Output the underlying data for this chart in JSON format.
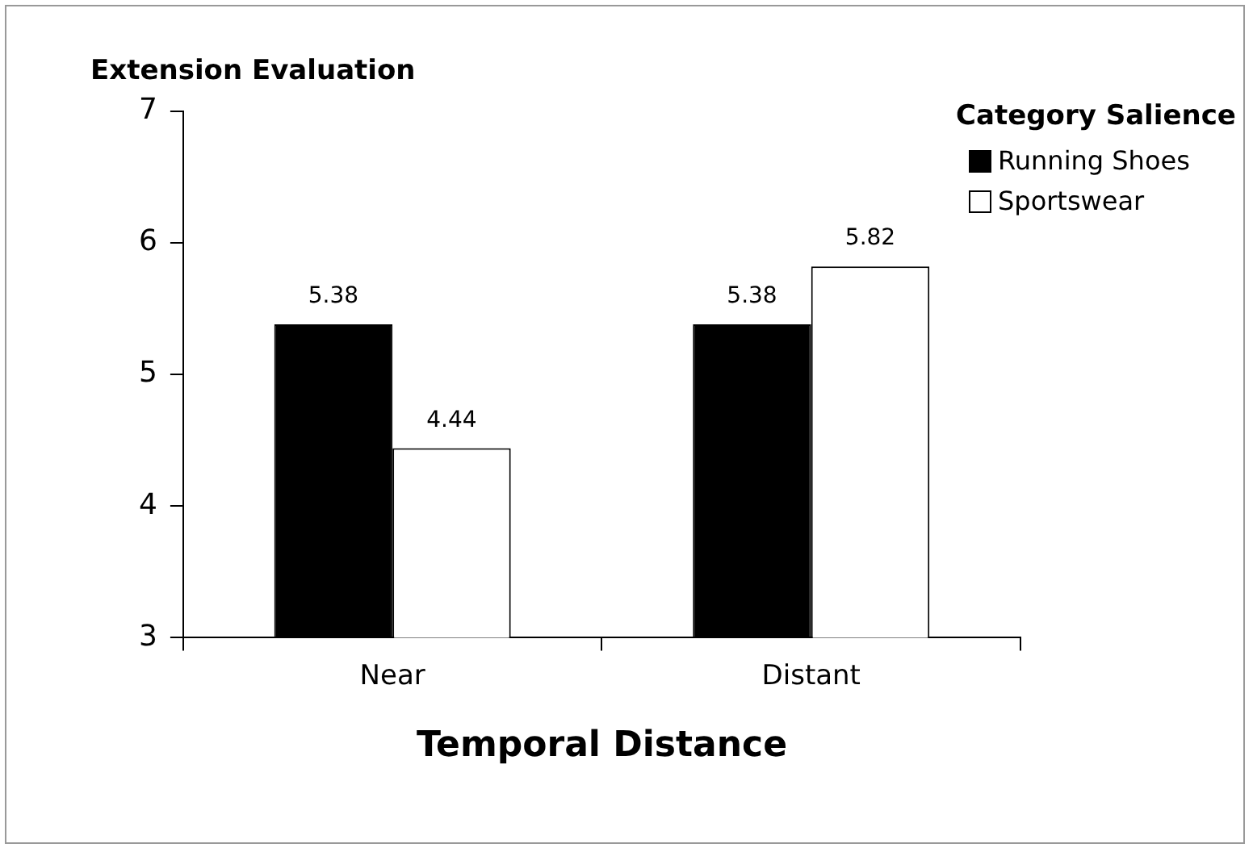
{
  "chart_data": {
    "type": "bar",
    "ylabel": "Extension Evaluation",
    "xlabel": "Temporal Distance",
    "legend_title": "Category Salience",
    "categories": [
      "Near",
      "Distant"
    ],
    "series": [
      {
        "name": "Running Shoes",
        "color": "#000000",
        "values": [
          5.38,
          5.38
        ]
      },
      {
        "name": "Sportswear",
        "color": "#ffffff",
        "values": [
          4.44,
          5.82
        ]
      }
    ],
    "ylim": [
      3,
      7
    ],
    "yticks": [
      3,
      4,
      5,
      6,
      7
    ],
    "legend": "top right",
    "data_labels": true
  }
}
